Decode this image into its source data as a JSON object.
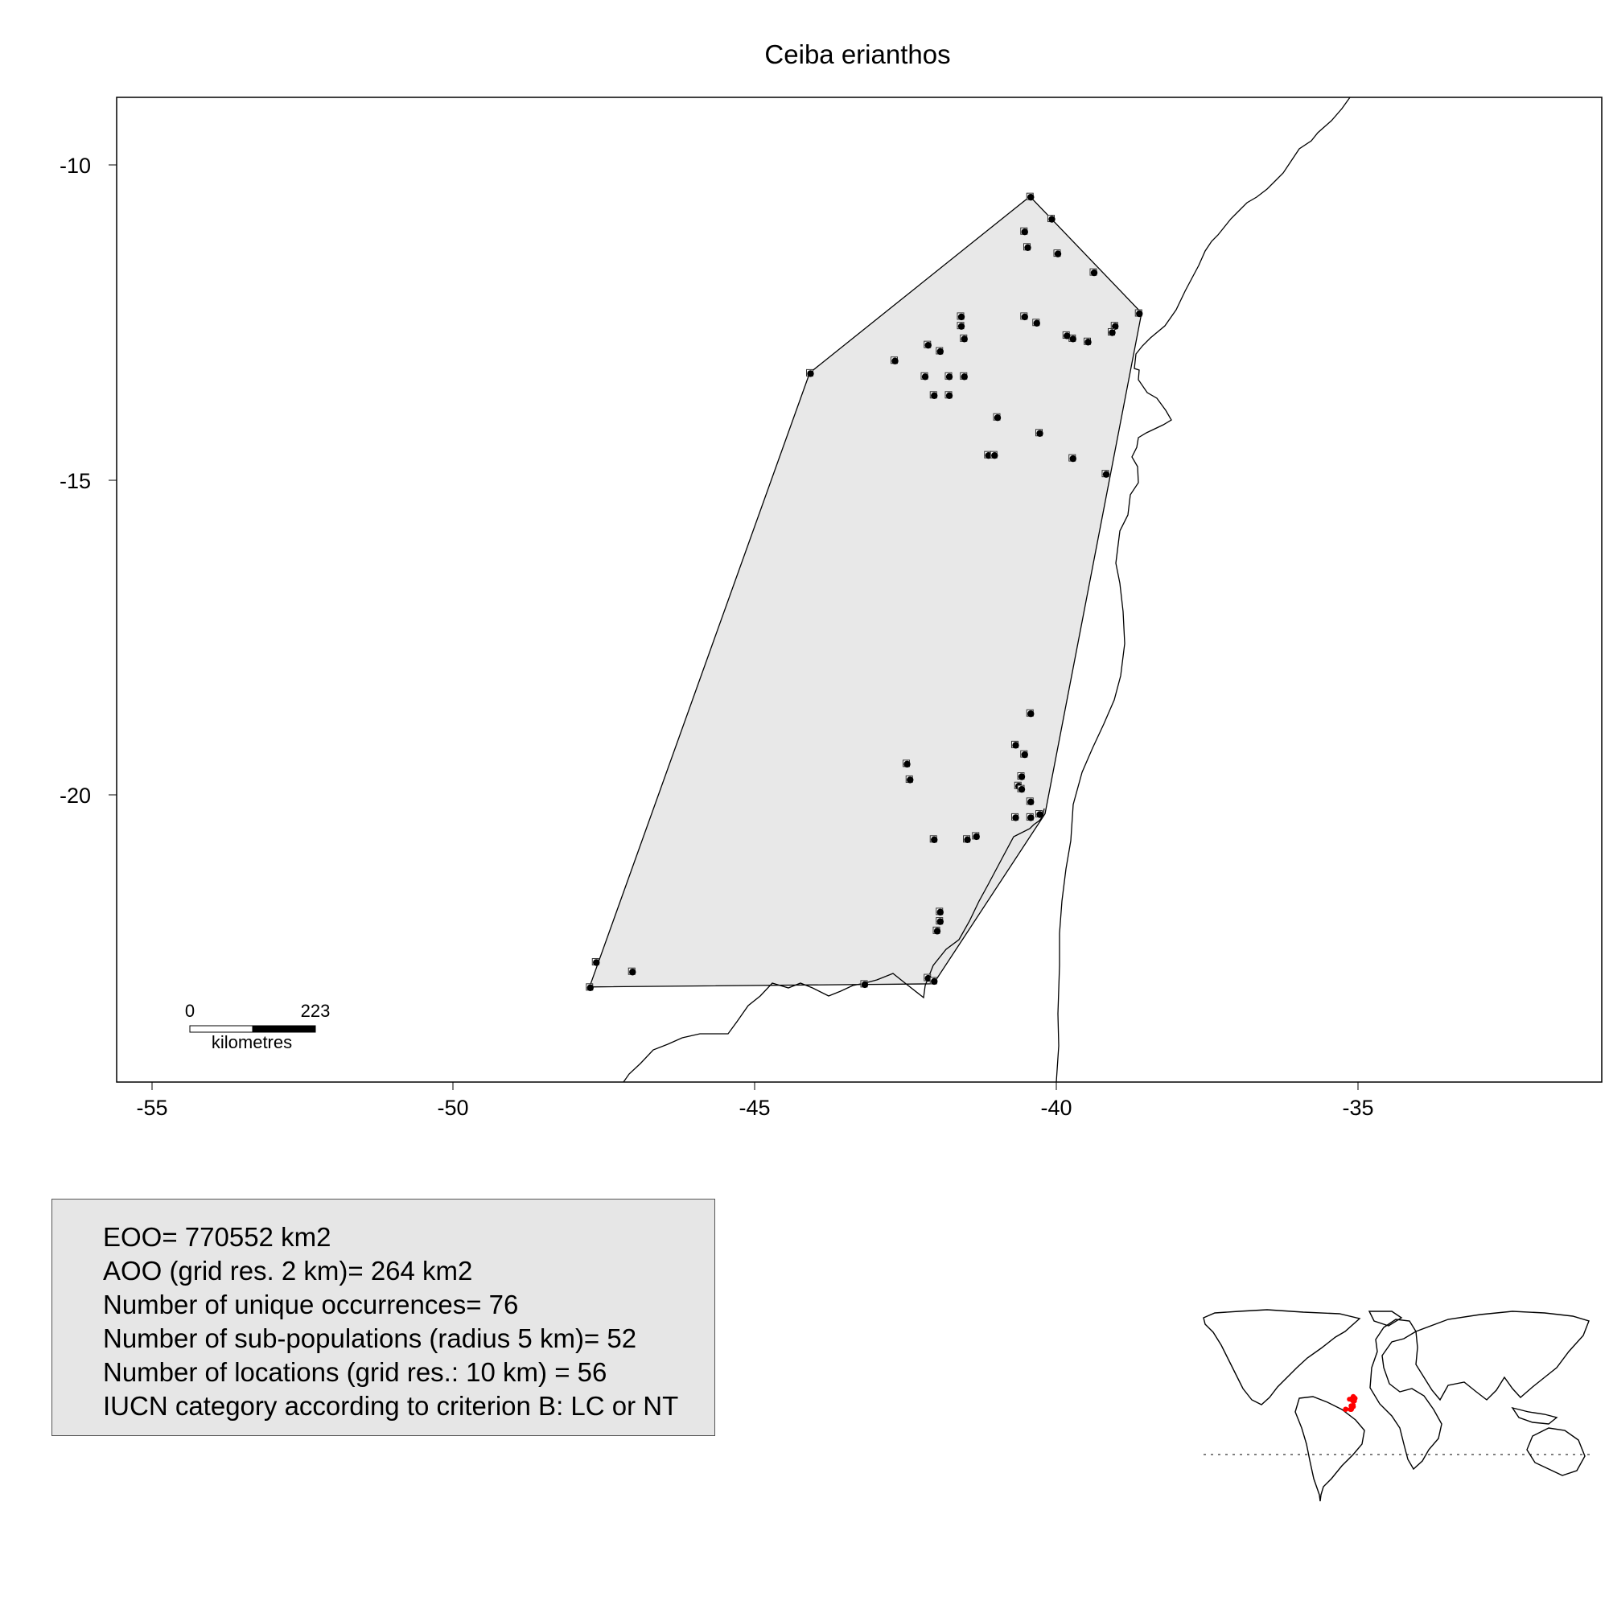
{
  "title": "Ceiba erianthos",
  "x_ticks": [
    "-55",
    "-50",
    "-45",
    "-40",
    "-35"
  ],
  "y_ticks": [
    "-10",
    "-15",
    "-20"
  ],
  "scale_bar": {
    "start_label": "0",
    "end_label": "223",
    "unit_label": "kilometres"
  },
  "stats": [
    "EOO= 770552 km2",
    "AOO (grid res. 2 km)= 264 km2",
    "Number of unique occurrences= 76",
    "Number of sub-populations (radius 5 km)= 52",
    "Number of locations (grid res.: 10  km) = 56",
    "IUCN category according to criterion B: LC or NT"
  ],
  "colors": {
    "hull_fill": "#e8e8e8",
    "points": "#000000",
    "inset_points": "#ff0000",
    "stats_fill": "#e6e6e6"
  },
  "chart_data": {
    "type": "scatter",
    "title": "Ceiba erianthos",
    "xlabel": "",
    "ylabel": "",
    "xlim": [
      -55.6,
      -31.0
    ],
    "ylim": [
      -24.6,
      -8.9
    ],
    "x_ticks": [
      -55,
      -50,
      -45,
      -40,
      -35
    ],
    "y_ticks": [
      -10,
      -15,
      -20
    ],
    "grid": false,
    "hull": [
      [
        -40.45,
        -10.5
      ],
      [
        -38.6,
        -12.35
      ],
      [
        -40.2,
        -20.3
      ],
      [
        -42.05,
        -23.0
      ],
      [
        -47.75,
        -23.05
      ],
      [
        -44.1,
        -13.3
      ]
    ],
    "occurrences": [
      [
        -40.45,
        -10.5
      ],
      [
        -40.1,
        -10.85
      ],
      [
        -40.55,
        -11.05
      ],
      [
        -40.5,
        -11.3
      ],
      [
        -40.0,
        -11.4
      ],
      [
        -39.4,
        -11.7
      ],
      [
        -38.65,
        -12.35
      ],
      [
        -39.05,
        -12.55
      ],
      [
        -39.1,
        -12.65
      ],
      [
        -39.5,
        -12.8
      ],
      [
        -39.75,
        -12.75
      ],
      [
        -39.85,
        -12.7
      ],
      [
        -40.35,
        -12.5
      ],
      [
        -40.55,
        -12.4
      ],
      [
        -41.6,
        -12.4
      ],
      [
        -41.6,
        -12.55
      ],
      [
        -41.55,
        -12.75
      ],
      [
        -42.15,
        -12.85
      ],
      [
        -41.95,
        -12.95
      ],
      [
        -42.7,
        -13.1
      ],
      [
        -42.2,
        -13.35
      ],
      [
        -41.8,
        -13.35
      ],
      [
        -41.55,
        -13.35
      ],
      [
        -42.05,
        -13.65
      ],
      [
        -41.8,
        -13.65
      ],
      [
        -44.1,
        -13.3
      ],
      [
        -41.0,
        -14.0
      ],
      [
        -40.3,
        -14.25
      ],
      [
        -41.15,
        -14.6
      ],
      [
        -41.05,
        -14.6
      ],
      [
        -39.75,
        -14.65
      ],
      [
        -39.2,
        -14.9
      ],
      [
        -40.45,
        -18.7
      ],
      [
        -40.7,
        -19.2
      ],
      [
        -40.55,
        -19.35
      ],
      [
        -42.5,
        -19.5
      ],
      [
        -42.45,
        -19.75
      ],
      [
        -40.6,
        -19.7
      ],
      [
        -40.65,
        -19.85
      ],
      [
        -40.6,
        -19.9
      ],
      [
        -40.45,
        -20.1
      ],
      [
        -40.3,
        -20.3
      ],
      [
        -40.45,
        -20.35
      ],
      [
        -40.7,
        -20.35
      ],
      [
        -41.35,
        -20.65
      ],
      [
        -41.5,
        -20.7
      ],
      [
        -42.05,
        -20.7
      ],
      [
        -41.95,
        -21.85
      ],
      [
        -41.95,
        -22.0
      ],
      [
        -42.0,
        -22.15
      ],
      [
        -42.15,
        -22.9
      ],
      [
        -42.05,
        -22.95
      ],
      [
        -43.2,
        -23.0
      ],
      [
        -47.65,
        -22.65
      ],
      [
        -47.05,
        -22.8
      ],
      [
        -47.75,
        -23.05
      ]
    ]
  }
}
